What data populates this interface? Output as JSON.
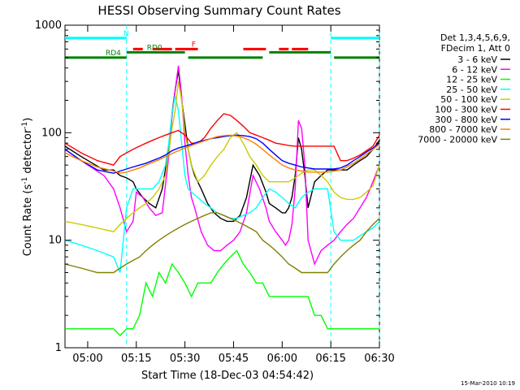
{
  "chart_data": {
    "type": "line",
    "title": "HESSI Observing Summary Count Rates",
    "xlabel": "Start Time (18-Dec-03 04:54:42)",
    "ylabel_main": "Count Rate (s",
    "ylabel_sup": "-1",
    "ylabel_rest": " detector",
    "ylabel_sup2": "-1",
    "ylabel_end": ")",
    "ylog": true,
    "ylim": [
      1,
      1000
    ],
    "xlim_minutes": [
      -7,
      90
    ],
    "x_ticks": [
      {
        "t": 0,
        "label": "05:00"
      },
      {
        "t": 15,
        "label": "05:15"
      },
      {
        "t": 30,
        "label": "05:30"
      },
      {
        "t": 45,
        "label": "05:45"
      },
      {
        "t": 60,
        "label": "06:00"
      },
      {
        "t": 75,
        "label": "06:15"
      },
      {
        "t": 90,
        "label": "06:30"
      }
    ],
    "y_ticks": [
      {
        "v": 1,
        "label": "1"
      },
      {
        "v": 10,
        "label": "10"
      },
      {
        "v": 100,
        "label": "100"
      },
      {
        "v": 1000,
        "label": "1000"
      }
    ],
    "legend_header": [
      "Det 1,3,4,5,6,9,",
      "FDecim 1, Att 0"
    ],
    "series": [
      {
        "name": "3 - 6 keV",
        "color": "#000000",
        "x": [
          -7,
          -2,
          5,
          8,
          10,
          12,
          14,
          15,
          17,
          19,
          21,
          23,
          25,
          26,
          27,
          28,
          29,
          30,
          31,
          32,
          33,
          35,
          37,
          39,
          41,
          43,
          45,
          47,
          49,
          51,
          53,
          55,
          56,
          58,
          60,
          61,
          62,
          63,
          64,
          65,
          66,
          67,
          68,
          70,
          72,
          74,
          76,
          78,
          80,
          82,
          84,
          86,
          88,
          90
        ],
        "y": [
          75,
          60,
          45,
          45,
          40,
          38,
          35,
          30,
          25,
          22,
          20,
          30,
          70,
          150,
          250,
          380,
          200,
          120,
          70,
          50,
          40,
          30,
          22,
          18,
          16,
          15,
          15,
          17,
          25,
          50,
          40,
          28,
          22,
          20,
          18,
          18,
          20,
          25,
          40,
          90,
          70,
          40,
          20,
          35,
          40,
          45,
          45,
          45,
          45,
          50,
          55,
          60,
          70,
          85
        ]
      },
      {
        "name": "6 - 12 keV",
        "color": "#ff00ff",
        "x": [
          -7,
          -2,
          5,
          8,
          10,
          12,
          14,
          15,
          17,
          19,
          21,
          23,
          25,
          26,
          27,
          28,
          29,
          30,
          31,
          32,
          33,
          35,
          37,
          39,
          41,
          43,
          45,
          47,
          49,
          51,
          53,
          55,
          56,
          58,
          60,
          61,
          62,
          63,
          64,
          65,
          66,
          67,
          68,
          70,
          72,
          74,
          76,
          78,
          80,
          82,
          84,
          86,
          88,
          90
        ],
        "y": [
          70,
          55,
          40,
          30,
          20,
          12,
          15,
          28,
          25,
          20,
          17,
          18,
          60,
          140,
          250,
          420,
          220,
          80,
          40,
          25,
          20,
          12,
          9,
          8,
          8,
          9,
          10,
          12,
          18,
          40,
          30,
          20,
          15,
          12,
          10,
          9,
          10,
          14,
          30,
          130,
          110,
          50,
          10,
          6,
          8,
          9,
          10,
          12,
          14,
          16,
          20,
          25,
          35,
          50
        ]
      },
      {
        "name": "12 - 25 keV",
        "color": "#00ff00",
        "x": [
          -7,
          -2,
          3,
          8,
          10,
          12,
          14,
          16,
          18,
          20,
          22,
          24,
          26,
          28,
          30,
          32,
          34,
          36,
          38,
          40,
          42,
          44,
          46,
          48,
          50,
          52,
          54,
          56,
          58,
          60,
          62,
          64,
          66,
          68,
          70,
          72,
          74,
          76,
          78,
          80,
          82,
          84,
          86,
          88,
          90
        ],
        "y": [
          1.5,
          1.5,
          1.5,
          1.5,
          1.3,
          1.5,
          1.5,
          2,
          4,
          3,
          5,
          4,
          6,
          5,
          4,
          3,
          4,
          4,
          4,
          5,
          6,
          7,
          8,
          6,
          5,
          4,
          4,
          3,
          3,
          3,
          3,
          3,
          3,
          3,
          2,
          2,
          1.5,
          1.5,
          1.5,
          1.5,
          1.5,
          1.5,
          1.5,
          1.5,
          1.5
        ]
      },
      {
        "name": "25 - 50 keV",
        "color": "#00ffff",
        "x": [
          -7,
          -2,
          3,
          8,
          10,
          12,
          14,
          16,
          18,
          20,
          22,
          24,
          25,
          26,
          27,
          28,
          29,
          30,
          31,
          32,
          34,
          36,
          38,
          40,
          42,
          44,
          46,
          48,
          50,
          52,
          54,
          56,
          58,
          60,
          62,
          64,
          66,
          68,
          70,
          72,
          74,
          76,
          78,
          80,
          82,
          84,
          86,
          88,
          90
        ],
        "y": [
          10,
          9,
          8,
          7,
          5,
          20,
          30,
          30,
          30,
          30,
          35,
          50,
          80,
          150,
          220,
          160,
          80,
          40,
          30,
          28,
          25,
          22,
          20,
          18,
          17,
          16,
          16,
          17,
          18,
          20,
          25,
          30,
          28,
          25,
          22,
          20,
          25,
          28,
          30,
          30,
          30,
          12,
          10,
          10,
          10,
          11,
          12,
          13,
          15
        ]
      },
      {
        "name": "50 - 100 keV",
        "color": "#cccc00",
        "x": [
          -7,
          -2,
          3,
          8,
          10,
          12,
          14,
          16,
          18,
          20,
          22,
          24,
          26,
          27,
          28,
          29,
          30,
          31,
          32,
          34,
          36,
          38,
          40,
          42,
          44,
          46,
          48,
          50,
          52,
          54,
          56,
          58,
          60,
          62,
          64,
          66,
          68,
          70,
          72,
          74,
          76,
          78,
          80,
          82,
          84,
          86,
          88,
          90
        ],
        "y": [
          15,
          14,
          13,
          12,
          14,
          16,
          18,
          20,
          22,
          25,
          30,
          40,
          110,
          160,
          300,
          200,
          100,
          70,
          50,
          35,
          40,
          50,
          60,
          70,
          90,
          100,
          80,
          60,
          50,
          40,
          35,
          35,
          35,
          35,
          38,
          42,
          45,
          45,
          40,
          35,
          28,
          25,
          24,
          24,
          25,
          28,
          32,
          50
        ]
      },
      {
        "name": "100 - 300 keV",
        "color": "#ff0000",
        "x": [
          -7,
          -2,
          3,
          8,
          10,
          12,
          14,
          16,
          18,
          20,
          22,
          24,
          26,
          28,
          30,
          32,
          34,
          36,
          38,
          40,
          42,
          44,
          46,
          48,
          50,
          52,
          54,
          56,
          58,
          60,
          62,
          64,
          66,
          68,
          70,
          72,
          74,
          76,
          78,
          80,
          82,
          84,
          86,
          88,
          90
        ],
        "y": [
          80,
          65,
          55,
          50,
          60,
          65,
          70,
          75,
          80,
          85,
          90,
          95,
          100,
          105,
          95,
          80,
          80,
          90,
          110,
          130,
          150,
          145,
          130,
          115,
          100,
          95,
          90,
          85,
          80,
          78,
          76,
          75,
          75,
          75,
          75,
          75,
          75,
          75,
          55,
          55,
          58,
          62,
          68,
          75,
          95
        ]
      },
      {
        "name": "300 - 800 keV",
        "color": "#0000ff",
        "x": [
          -7,
          -2,
          3,
          8,
          10,
          12,
          14,
          16,
          18,
          20,
          22,
          24,
          26,
          28,
          30,
          32,
          34,
          36,
          38,
          40,
          42,
          44,
          46,
          48,
          50,
          52,
          54,
          56,
          58,
          60,
          62,
          64,
          66,
          68,
          70,
          72,
          74,
          76,
          78,
          80,
          82,
          84,
          86,
          88,
          90
        ],
        "y": [
          70,
          55,
          45,
          42,
          44,
          46,
          48,
          50,
          52,
          55,
          58,
          62,
          68,
          72,
          75,
          78,
          82,
          85,
          88,
          90,
          92,
          94,
          95,
          94,
          92,
          88,
          80,
          70,
          62,
          55,
          52,
          50,
          48,
          47,
          46,
          46,
          46,
          46,
          47,
          50,
          55,
          60,
          66,
          72,
          80
        ]
      },
      {
        "name": "800 - 7000 keV",
        "color": "#ff8000",
        "x": [
          -7,
          -2,
          3,
          8,
          10,
          12,
          14,
          16,
          18,
          20,
          22,
          24,
          26,
          28,
          30,
          32,
          34,
          36,
          38,
          40,
          42,
          44,
          46,
          48,
          50,
          52,
          54,
          56,
          58,
          60,
          62,
          64,
          66,
          68,
          70,
          72,
          74,
          76,
          78,
          80,
          82,
          84,
          86,
          88,
          90
        ],
        "y": [
          65,
          55,
          48,
          44,
          42,
          43,
          45,
          47,
          50,
          53,
          56,
          60,
          64,
          68,
          72,
          76,
          80,
          84,
          88,
          92,
          94,
          95,
          93,
          90,
          85,
          78,
          70,
          62,
          56,
          50,
          47,
          45,
          44,
          43,
          43,
          43,
          43,
          44,
          45,
          48,
          52,
          57,
          63,
          70,
          78
        ]
      },
      {
        "name": "7000 - 20000 keV",
        "color": "#808000",
        "x": [
          -7,
          -2,
          3,
          8,
          10,
          12,
          14,
          16,
          18,
          20,
          22,
          24,
          26,
          28,
          30,
          32,
          34,
          36,
          38,
          40,
          42,
          44,
          46,
          48,
          50,
          52,
          54,
          56,
          58,
          60,
          62,
          64,
          66,
          68,
          70,
          72,
          74,
          76,
          78,
          80,
          82,
          84,
          86,
          88,
          90
        ],
        "y": [
          6,
          5.5,
          5,
          5,
          5.5,
          6,
          6.5,
          7,
          8,
          9,
          10,
          11,
          12,
          13,
          14,
          15,
          16,
          17,
          18,
          18,
          17,
          16,
          15,
          14,
          13,
          12,
          10,
          9,
          8,
          7,
          6,
          5.5,
          5,
          5,
          5,
          5,
          5,
          6,
          7,
          8,
          9,
          10,
          12,
          14,
          16
        ]
      }
    ],
    "annotations": [
      {
        "label": "N",
        "color": "#00ffff",
        "segments": [
          [
            -7,
            12
          ],
          [
            75,
            90
          ]
        ],
        "level": 760
      },
      {
        "label": "F",
        "color": "#ff0000",
        "segments": [
          [
            14,
            17
          ],
          [
            20,
            26
          ],
          [
            27,
            34
          ],
          [
            48,
            55
          ],
          [
            59,
            62
          ],
          [
            63,
            68
          ]
        ],
        "level": 600
      },
      {
        "label": "RD0",
        "color": "#008000",
        "segments": [
          [
            12,
            30
          ],
          [
            56,
            75
          ]
        ],
        "level": 560
      },
      {
        "label": "RD4",
        "color": "#008000",
        "segments": [
          [
            -7,
            12
          ],
          [
            31,
            54
          ],
          [
            76,
            90
          ]
        ],
        "level": 500
      }
    ],
    "dashed_markers": [
      12,
      75,
      90
    ],
    "grid": false,
    "legend_position": "right"
  },
  "footer": {
    "timestamp": "15-Mar-2010 10:19"
  }
}
